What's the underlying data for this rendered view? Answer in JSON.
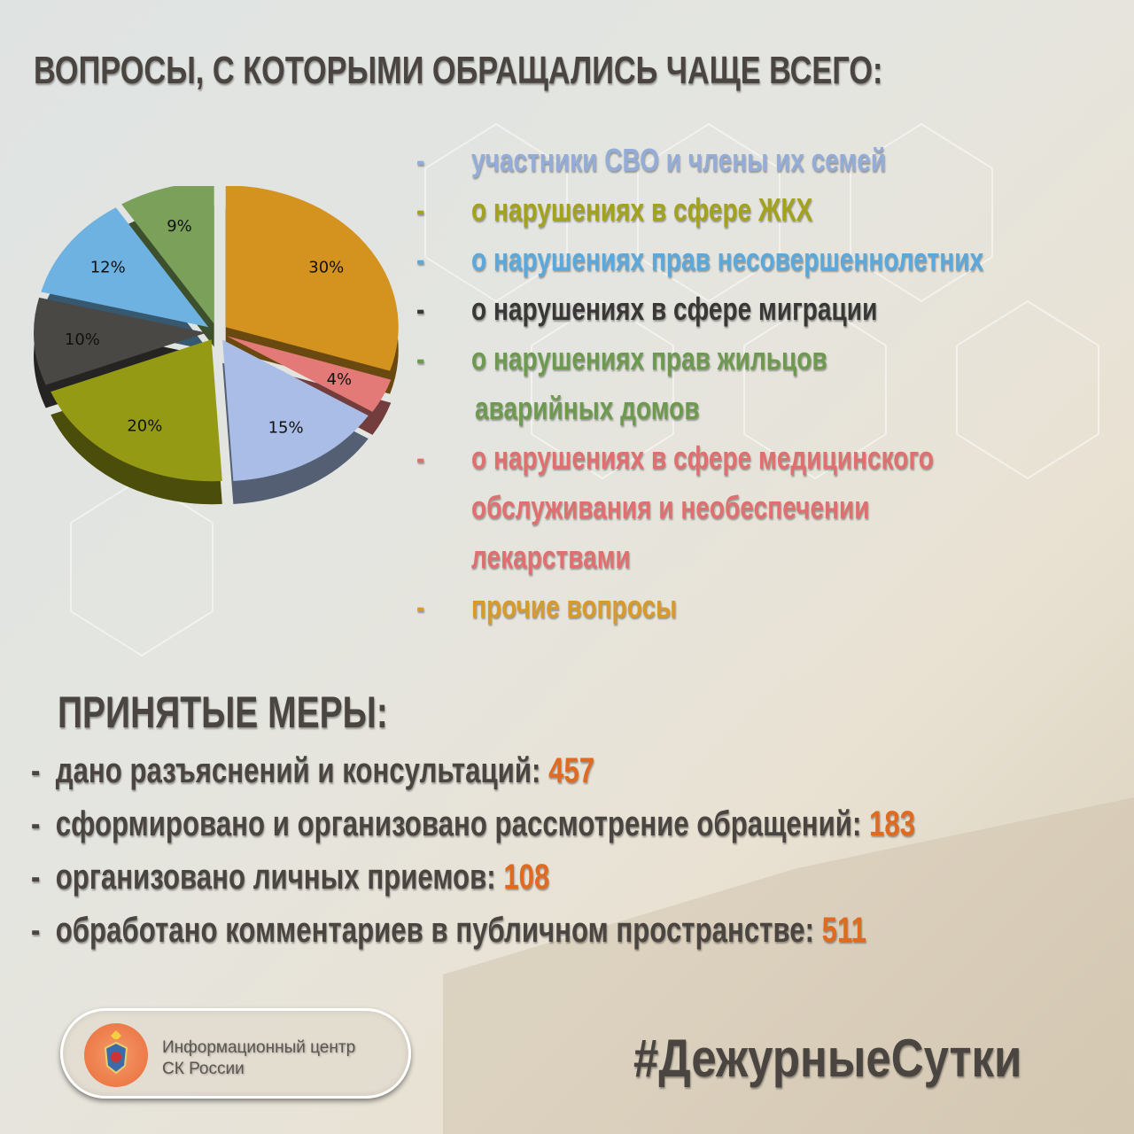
{
  "title": "ВОПРОСЫ, С КОТОРЫМИ ОБРАЩАЛИСЬ ЧАЩЕ ВСЕГО:",
  "chart_data": {
    "type": "pie",
    "slices": [
      {
        "label": "прочие вопросы",
        "value": 30,
        "text": "30%",
        "color": "#d4921f"
      },
      {
        "label": "о нарушениях в сфере медицинского обслуживания и необеспечении лекарствами",
        "value": 4,
        "text": "4%",
        "color": "#e37a78"
      },
      {
        "label": "участники СВО и члены их семей",
        "value": 15,
        "text": "15%",
        "color": "#a9bde6"
      },
      {
        "label": "о нарушениях в сфере ЖКХ",
        "value": 20,
        "text": "20%",
        "color": "#959a14"
      },
      {
        "label": "о нарушениях в сфере миграции",
        "value": 10,
        "text": "10%",
        "color": "#4a4845"
      },
      {
        "label": "о нарушениях прав несовершеннолетних",
        "value": 12,
        "text": "12%",
        "color": "#6db2e0"
      },
      {
        "label": "о нарушениях прав жильцов аварийных домов",
        "value": 9,
        "text": "9%",
        "color": "#7aa05a"
      }
    ]
  },
  "legend": [
    {
      "dash": "-",
      "lines": [
        "участники СВО и члены их семей"
      ],
      "color": "#93acd8"
    },
    {
      "dash": "-",
      "lines": [
        "о нарушениях в сфере ЖКХ"
      ],
      "color": "#a3a21e"
    },
    {
      "dash": "-",
      "lines": [
        "о нарушениях прав несовершеннолетних"
      ],
      "color": "#5aa8dc"
    },
    {
      "dash": "-",
      "lines": [
        "о нарушениях в сфере миграции"
      ],
      "color": "#3a3836"
    },
    {
      "dash": "-",
      "lines": [
        "о нарушениях прав жильцов",
        "аварийных домов"
      ],
      "color": "#6e9a50"
    },
    {
      "dash": "-",
      "lines": [
        "о нарушениях в сфере медицинского",
        "обслуживания и необеспечении",
        "лекарствами"
      ],
      "color": "#e07070"
    },
    {
      "dash": "-",
      "lines": [
        "прочие вопросы"
      ],
      "color": "#d89a2a"
    }
  ],
  "measures": {
    "title": "ПРИНЯТЫЕ МЕРЫ:",
    "items": [
      {
        "label": "дано разъяснений и консультаций:",
        "value": "457"
      },
      {
        "label": "сформировано и организовано рассмотрение обращений:",
        "value": "183"
      },
      {
        "label": "организовано личных приемов:",
        "value": "108"
      },
      {
        "label": "обработано комментариев в публичном пространстве:",
        "value": "511"
      }
    ]
  },
  "logo": {
    "line1": "Информационный центр",
    "line2": "СК России"
  },
  "hashtag": "#ДежурныеСутки"
}
